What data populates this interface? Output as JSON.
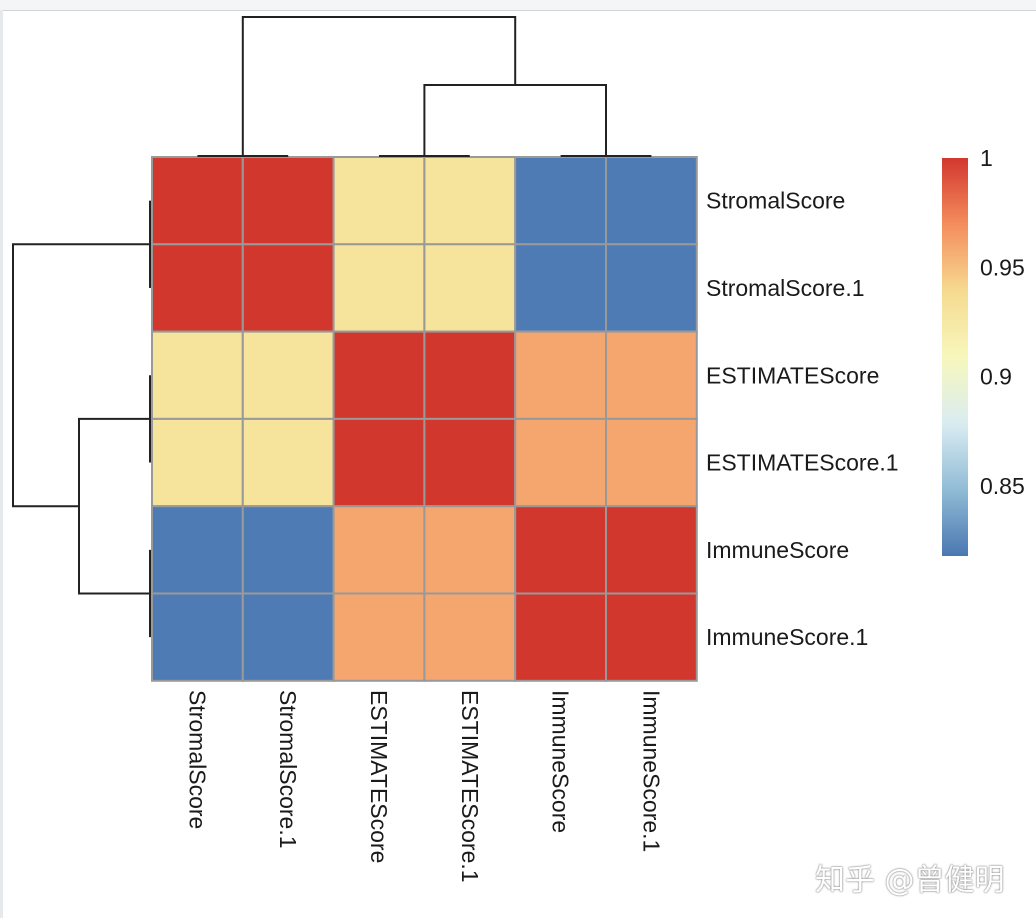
{
  "chart_data": {
    "type": "heatmap",
    "rows": [
      "StromalScore",
      "StromalScore.1",
      "ESTIMATEScore",
      "ESTIMATEScore.1",
      "ImmuneScore",
      "ImmuneScore.1"
    ],
    "columns": [
      "StromalScore",
      "StromalScore.1",
      "ESTIMATEScore",
      "ESTIMATEScore.1",
      "ImmuneScore",
      "ImmuneScore.1"
    ],
    "values": [
      [
        1.0,
        1.0,
        0.93,
        0.93,
        0.82,
        0.82
      ],
      [
        1.0,
        1.0,
        0.93,
        0.93,
        0.82,
        0.82
      ],
      [
        0.93,
        0.93,
        1.0,
        1.0,
        0.96,
        0.96
      ],
      [
        0.93,
        0.93,
        1.0,
        1.0,
        0.96,
        0.96
      ],
      [
        0.82,
        0.82,
        0.96,
        0.96,
        1.0,
        1.0
      ],
      [
        0.82,
        0.82,
        0.96,
        0.96,
        1.0,
        1.0
      ]
    ],
    "legend": {
      "ticks": [
        "1",
        "0.95",
        "0.9",
        "0.85"
      ],
      "range": [
        0.818,
        1.0
      ],
      "position": "right",
      "colors": [
        "#4575B4",
        "#91BFDB",
        "#E0F3F8",
        "#FFFFBF",
        "#FEE090",
        "#FC8D59",
        "#D73027"
      ]
    },
    "cell_border_color": "#999999",
    "row_dendrogram": "((StromalScore,StromalScore.1),((ESTIMATEScore,ESTIMATEScore.1),(ImmuneScore,ImmuneScore.1)))",
    "column_dendrogram": "((StromalScore,StromalScore.1),((ESTIMATEScore,ESTIMATEScore.1),(ImmuneScore,ImmuneScore.1)))"
  },
  "watermark": "知乎 @曾健明"
}
